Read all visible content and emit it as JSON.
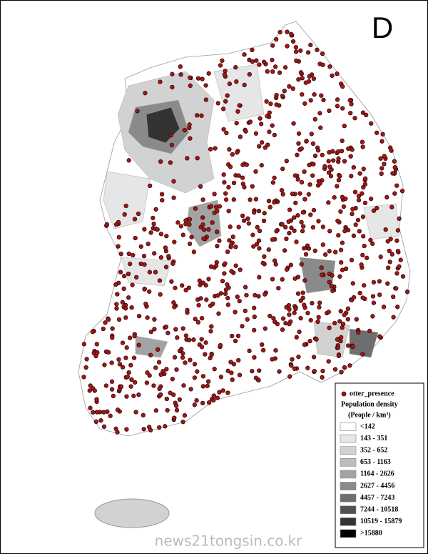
{
  "panel_label": "D",
  "legend": {
    "marker_label": "otter_presence",
    "title": "Population density",
    "unit": "(People / km²)",
    "classes": [
      {
        "label": "<142",
        "color": "#ffffff"
      },
      {
        "label": "143 - 351",
        "color": "#e6e6e6"
      },
      {
        "label": "352 - 652",
        "color": "#d2d2d2"
      },
      {
        "label": "653 - 1163",
        "color": "#bdbdbd"
      },
      {
        "label": "1164 - 2626",
        "color": "#a3a3a3"
      },
      {
        "label": "2627 - 4456",
        "color": "#8a8a8a"
      },
      {
        "label": "4457 - 7243",
        "color": "#6e6e6e"
      },
      {
        "label": "7244 - 10518",
        "color": "#525252"
      },
      {
        "label": "10519 - 15879",
        "color": "#333333"
      },
      {
        "label": ">15880",
        "color": "#000000"
      }
    ]
  },
  "watermark": "news21tongsin.co.kr"
}
